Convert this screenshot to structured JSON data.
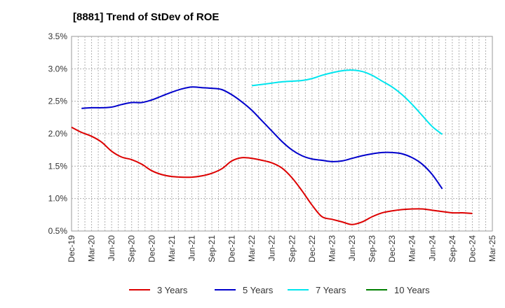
{
  "chart_data": {
    "type": "line",
    "title": "[8881]  Trend of StDev of ROE",
    "xlabel": "",
    "ylabel": "",
    "y_tick_labels": [
      "0.5%",
      "1.0%",
      "1.5%",
      "2.0%",
      "2.5%",
      "3.0%",
      "3.5%"
    ],
    "y_ticks": [
      0.5,
      1.0,
      1.5,
      2.0,
      2.5,
      3.0,
      3.5
    ],
    "ylim": [
      0.5,
      3.5
    ],
    "x_tick_labels": [
      "Dec-19",
      "Mar-20",
      "Jun-20",
      "Sep-20",
      "Dec-20",
      "Mar-21",
      "Jun-21",
      "Sep-21",
      "Dec-21",
      "Mar-22",
      "Jun-22",
      "Sep-22",
      "Dec-22",
      "Mar-23",
      "Jun-23",
      "Sep-23",
      "Dec-23",
      "Mar-24",
      "Jun-24",
      "Sep-24",
      "Dec-24",
      "Mar-25"
    ],
    "grid": true,
    "legend_position": "bottom",
    "series": [
      {
        "name": "3 Years",
        "color": "#dd0000",
        "values": [
          2.1,
          2.02,
          1.96,
          1.87,
          1.73,
          1.64,
          1.6,
          1.53,
          1.43,
          1.37,
          1.34,
          1.33,
          1.33,
          1.35,
          1.39,
          1.46,
          1.58,
          1.63,
          1.62,
          1.59,
          1.55,
          1.47,
          1.32,
          1.12,
          0.9,
          0.72,
          0.68,
          0.64,
          0.6,
          0.64,
          0.72,
          0.78,
          0.81,
          0.83,
          0.84,
          0.84,
          0.82,
          0.8,
          0.78,
          0.78,
          0.77
        ]
      },
      {
        "name": "5 Years",
        "color": "#0000cc",
        "values": [
          null,
          2.39,
          2.4,
          2.4,
          2.41,
          2.45,
          2.48,
          2.48,
          2.52,
          2.58,
          2.64,
          2.69,
          2.72,
          2.71,
          2.7,
          2.68,
          2.6,
          2.49,
          2.36,
          2.2,
          2.04,
          1.88,
          1.75,
          1.66,
          1.61,
          1.59,
          1.57,
          1.58,
          1.62,
          1.66,
          1.69,
          1.71,
          1.71,
          1.69,
          1.63,
          1.53,
          1.37,
          1.15
        ]
      },
      {
        "name": "7 Years",
        "color": "#00e5ee",
        "values": [
          null,
          null,
          null,
          null,
          null,
          null,
          null,
          null,
          null,
          null,
          null,
          null,
          null,
          null,
          null,
          null,
          null,
          null,
          2.74,
          2.76,
          2.78,
          2.8,
          2.81,
          2.82,
          2.85,
          2.9,
          2.94,
          2.97,
          2.98,
          2.96,
          2.9,
          2.81,
          2.72,
          2.6,
          2.45,
          2.28,
          2.11,
          1.99
        ]
      },
      {
        "name": "10 Years",
        "color": "#008000",
        "values": []
      }
    ]
  }
}
